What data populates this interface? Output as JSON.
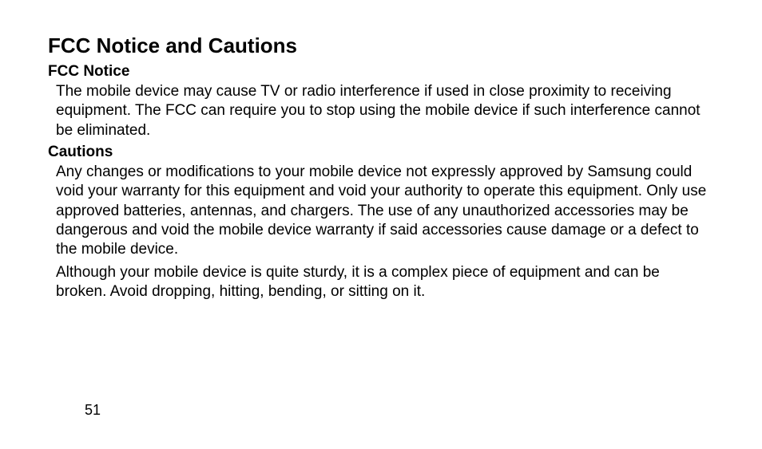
{
  "document": {
    "page_number": "51",
    "text_color": "#000000",
    "background_color": "#ffffff",
    "heading_font_weight": 900,
    "body_font_size_pt": 14,
    "heading_font_size_pt": 20,
    "subheading_font_size_pt": 14
  },
  "section": {
    "title": "FCC Notice and Cautions",
    "fcc_notice": {
      "heading": "FCC Notice",
      "paragraph": "The mobile device may cause TV or radio interference if used in close proximity to receiving equipment. The FCC can require you to stop using the mobile device if such interference cannot be eliminated."
    },
    "cautions": {
      "heading": "Cautions",
      "paragraph_1": "Any changes or modifications to your mobile device not expressly approved by Samsung could void your warranty for this equipment and void your authority to operate this equipment. Only use approved batteries, antennas, and chargers. The use of any unauthorized accessories may be dangerous and void the mobile device warranty if said accessories cause damage or a defect to the mobile device.",
      "paragraph_2": "Although your mobile device is quite sturdy, it is a complex piece of equipment and can be broken. Avoid dropping, hitting, bending, or sitting on it."
    }
  }
}
